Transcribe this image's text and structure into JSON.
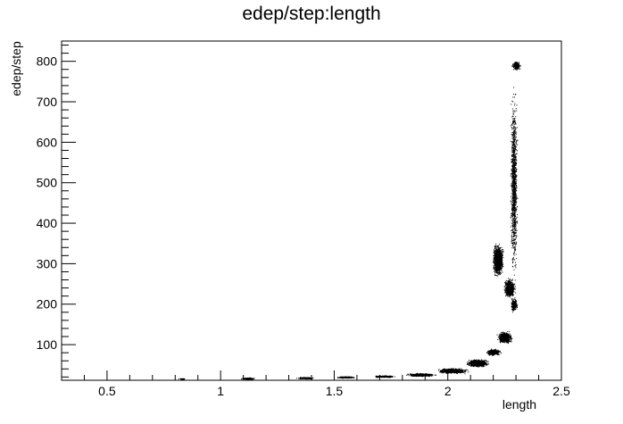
{
  "chart_data": {
    "type": "scatter",
    "title": "edep/step:length",
    "xlabel": "length",
    "ylabel": "edep/step",
    "xlim": [
      0.3,
      2.5
    ],
    "ylim": [
      12,
      850
    ],
    "xticks": [
      0.5,
      1,
      1.5,
      2,
      2.5
    ],
    "xtick_labels": [
      "0.5",
      "1",
      "1.5",
      "2",
      "2.5"
    ],
    "yticks": [
      100,
      200,
      300,
      400,
      500,
      600,
      700,
      800
    ],
    "ytick_labels": [
      "100",
      "200",
      "300",
      "400",
      "500",
      "600",
      "700",
      "800"
    ],
    "grid": false,
    "legend": "none",
    "marker_color": "#000000",
    "regions": [
      {
        "x": 0.83,
        "y": 16,
        "dx": 0.02,
        "dy": 2,
        "n": 40
      },
      {
        "x": 1.12,
        "y": 17,
        "dx": 0.04,
        "dy": 3,
        "n": 120
      },
      {
        "x": 1.37,
        "y": 18,
        "dx": 0.05,
        "dy": 3,
        "n": 180
      },
      {
        "x": 1.55,
        "y": 20,
        "dx": 0.05,
        "dy": 3,
        "n": 220
      },
      {
        "x": 1.72,
        "y": 22,
        "dx": 0.06,
        "dy": 3,
        "n": 300
      },
      {
        "x": 1.88,
        "y": 26,
        "dx": 0.08,
        "dy": 5,
        "n": 650
      },
      {
        "x": 2.02,
        "y": 36,
        "dx": 0.08,
        "dy": 8,
        "n": 900
      },
      {
        "x": 2.13,
        "y": 55,
        "dx": 0.06,
        "dy": 12,
        "n": 900
      },
      {
        "x": 2.2,
        "y": 82,
        "dx": 0.04,
        "dy": 10,
        "n": 600
      },
      {
        "x": 2.25,
        "y": 118,
        "dx": 0.04,
        "dy": 18,
        "n": 800
      },
      {
        "x": 2.22,
        "y": 310,
        "dx": 0.03,
        "dy": 50,
        "n": 1400
      },
      {
        "x": 2.27,
        "y": 240,
        "dx": 0.03,
        "dy": 30,
        "n": 900
      },
      {
        "x": 2.29,
        "y": 200,
        "dx": 0.02,
        "dy": 25,
        "n": 200
      },
      {
        "x": 2.29,
        "y": 500,
        "dx": 0.02,
        "dy": 300,
        "n": 1200
      },
      {
        "x": 2.3,
        "y": 790,
        "dx": 0.025,
        "dy": 15,
        "n": 250
      }
    ]
  }
}
